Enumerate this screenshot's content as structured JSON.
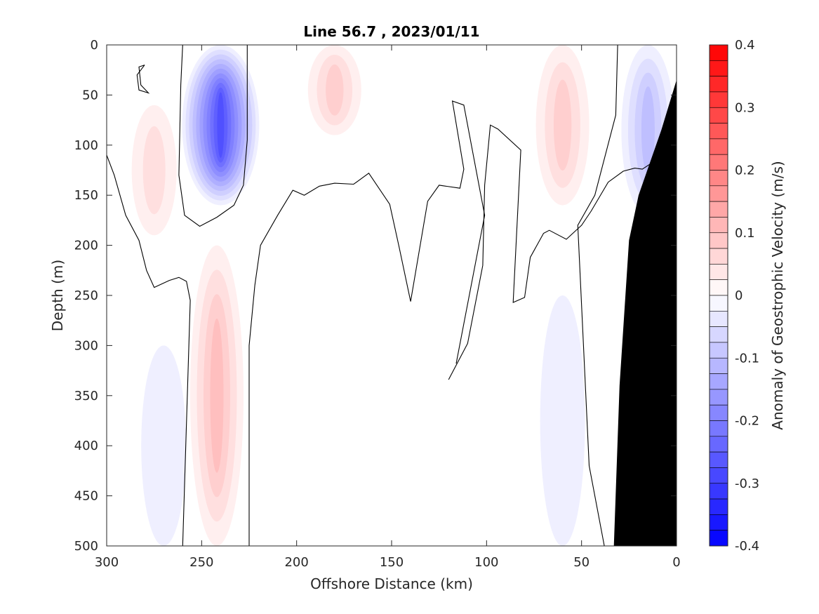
{
  "chart_data": {
    "type": "heatmap",
    "title": "Line 56.7 , 2023/01/11",
    "xlabel": "Offshore Distance (km)",
    "ylabel": "Depth (m)",
    "colorbar_label": "Anomaly of Geostrophic Velocity (m/s)",
    "xlim": [
      300,
      0
    ],
    "x_reversed": true,
    "ylim": [
      0,
      500
    ],
    "y_reversed": true,
    "x_ticks": [
      "300",
      "250",
      "200",
      "150",
      "100",
      "50",
      "0"
    ],
    "y_ticks": [
      "0",
      "50",
      "100",
      "150",
      "200",
      "250",
      "300",
      "350",
      "400",
      "450",
      "500"
    ],
    "colorbar_range": [
      -0.4,
      0.4
    ],
    "colorbar_ticks": [
      "0.4",
      "0.3",
      "0.2",
      "0.1",
      "0",
      "-0.1",
      "-0.2",
      "-0.3",
      "-0.4"
    ],
    "colorbar_levels": 32,
    "zero_contour": true,
    "colors": {
      "positive_max": "#ff0000",
      "negative_max": "#0000ff",
      "zero": "#ffffff",
      "bathymetry": "#000000"
    },
    "features": [
      {
        "name": "strong negative core",
        "x_km": 240,
        "depth_m": [
          0,
          160
        ],
        "peak": -0.3
      },
      {
        "name": "deep positive jet",
        "x_km": 242,
        "depth_m": [
          200,
          500
        ],
        "peak": 0.12
      },
      {
        "name": "positive near-surface lobe",
        "x_km": 275,
        "depth_m": [
          60,
          190
        ],
        "peak": 0.06
      },
      {
        "name": "positive near-surface lobe",
        "x_km": 180,
        "depth_m": [
          0,
          90
        ],
        "peak": 0.08
      },
      {
        "name": "positive near-surface lobe",
        "x_km": 60,
        "depth_m": [
          0,
          160
        ],
        "peak": 0.09
      },
      {
        "name": "nearshore negative",
        "x_km": 15,
        "depth_m": [
          0,
          170
        ],
        "peak": -0.12
      },
      {
        "name": "deep weak negative",
        "x_km": 270,
        "depth_m": [
          300,
          500
        ],
        "peak": -0.03
      },
      {
        "name": "deep weak negative",
        "x_km": 60,
        "depth_m": [
          250,
          500
        ],
        "peak": -0.03
      }
    ],
    "bathymetry": [
      {
        "x_km": 0,
        "depth_m": 35
      },
      {
        "x_km": 8,
        "depth_m": 85
      },
      {
        "x_km": 20,
        "depth_m": 150
      },
      {
        "x_km": 25,
        "depth_m": 195
      },
      {
        "x_km": 30,
        "depth_m": 340
      },
      {
        "x_km": 33,
        "depth_m": 500
      }
    ],
    "zero_contours": [
      [
        [
          260,
          0
        ],
        [
          261,
          40
        ],
        [
          262,
          130
        ],
        [
          259,
          170
        ],
        [
          251,
          181
        ],
        [
          242,
          172
        ],
        [
          233,
          160
        ],
        [
          228,
          140
        ],
        [
          226,
          95
        ],
        [
          226,
          0
        ]
      ],
      [
        [
          280,
          20
        ],
        [
          283,
          22
        ],
        [
          282,
          40
        ],
        [
          278,
          48
        ],
        [
          283,
          45
        ],
        [
          284,
          30
        ],
        [
          280,
          20
        ]
      ],
      [
        [
          300,
          110
        ],
        [
          296,
          130
        ],
        [
          290,
          170
        ],
        [
          283,
          195
        ],
        [
          279,
          225
        ],
        [
          275,
          242
        ],
        [
          267,
          235
        ],
        [
          262,
          232
        ],
        [
          258,
          236
        ],
        [
          256,
          255
        ],
        [
          260,
          500
        ]
      ],
      [
        [
          225,
          500
        ],
        [
          225,
          300
        ],
        [
          222,
          240
        ],
        [
          219,
          200
        ],
        [
          210,
          170
        ],
        [
          202,
          145
        ],
        [
          196,
          150
        ],
        [
          188,
          141
        ],
        [
          180,
          138
        ],
        [
          170,
          139
        ],
        [
          162,
          128
        ],
        [
          151,
          159
        ],
        [
          146,
          202
        ],
        [
          140,
          256
        ],
        [
          131,
          156
        ],
        [
          125,
          140
        ],
        [
          114,
          143
        ],
        [
          112,
          124
        ],
        [
          118,
          56
        ],
        [
          112,
          60
        ],
        [
          101,
          170
        ],
        [
          116,
          318
        ]
      ],
      [
        [
          0,
          500
        ],
        [
          38,
          500
        ],
        [
          46,
          420
        ],
        [
          52,
          180
        ],
        [
          43,
          150
        ],
        [
          32,
          70
        ],
        [
          31,
          0
        ]
      ],
      [
        [
          120,
          334
        ],
        [
          110,
          298
        ],
        [
          102,
          220
        ],
        [
          101,
          140
        ],
        [
          98,
          80
        ],
        [
          94,
          84
        ],
        [
          82,
          105
        ],
        [
          86,
          257
        ],
        [
          80,
          252
        ],
        [
          77,
          212
        ],
        [
          70,
          188
        ],
        [
          67,
          185
        ],
        [
          58,
          194
        ],
        [
          50,
          180
        ],
        [
          45,
          166
        ],
        [
          36,
          137
        ],
        [
          28,
          126
        ],
        [
          22,
          123
        ],
        [
          18,
          124
        ],
        [
          14,
          119
        ],
        [
          4,
          105
        ],
        [
          0,
          90
        ]
      ]
    ]
  }
}
